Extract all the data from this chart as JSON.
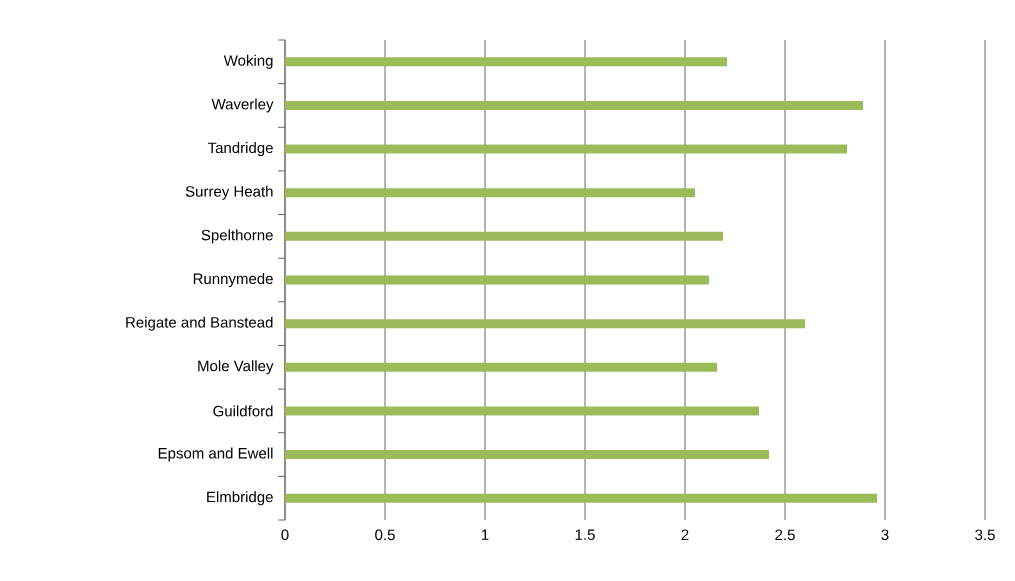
{
  "chart_data": {
    "type": "bar",
    "orientation": "horizontal",
    "categories": [
      "Woking",
      "Waverley",
      "Tandridge",
      "Surrey Heath",
      "Spelthorne",
      "Runnymede",
      "Reigate and Banstead",
      "Mole Valley",
      "Guildford",
      "Epsom and Ewell",
      "Elmbridge"
    ],
    "values": [
      2.21,
      2.89,
      2.81,
      2.05,
      2.19,
      2.12,
      2.6,
      2.16,
      2.37,
      2.42,
      2.96
    ],
    "color": "#9bbb59",
    "xlim": [
      0,
      3.5
    ],
    "xticks": [
      0,
      0.5,
      1,
      1.5,
      2,
      2.5,
      3,
      3.5
    ],
    "grid": "x"
  }
}
